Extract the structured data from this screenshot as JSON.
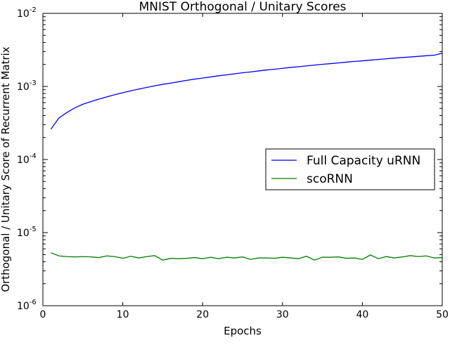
{
  "chart_data": {
    "type": "line",
    "title": "MNIST Orthogonal / Unitary Scores",
    "xlabel": "Epochs",
    "ylabel": "Orthogonal / Unitary Score of Recurrent Matrix",
    "xlim": [
      0,
      50
    ],
    "ylim": [
      1e-06,
      0.01
    ],
    "yscale": "log",
    "x_ticks": [
      {
        "value": 0,
        "label": "0"
      },
      {
        "value": 10,
        "label": "10"
      },
      {
        "value": 20,
        "label": "20"
      },
      {
        "value": 30,
        "label": "30"
      },
      {
        "value": 40,
        "label": "40"
      },
      {
        "value": 50,
        "label": "50"
      }
    ],
    "y_ticks": [
      {
        "value": 1e-06,
        "base": "10",
        "exp": "-6"
      },
      {
        "value": 1e-05,
        "base": "10",
        "exp": "-5"
      },
      {
        "value": 0.0001,
        "base": "10",
        "exp": "-4"
      },
      {
        "value": 0.001,
        "base": "10",
        "exp": "-3"
      },
      {
        "value": 0.01,
        "base": "10",
        "exp": "-2"
      }
    ],
    "grid": false,
    "legend_position": "center-right",
    "x": [
      1,
      2,
      3,
      4,
      5,
      6,
      7,
      8,
      9,
      10,
      11,
      12,
      13,
      14,
      15,
      16,
      17,
      18,
      19,
      20,
      21,
      22,
      23,
      24,
      25,
      26,
      27,
      28,
      29,
      30,
      31,
      32,
      33,
      34,
      35,
      36,
      37,
      38,
      39,
      40,
      41,
      42,
      43,
      44,
      45,
      46,
      47,
      48,
      49,
      50
    ],
    "series": [
      {
        "name": "Full Capacity uRNN",
        "color": "#0000ff",
        "values": [
          0.00026,
          0.00037,
          0.00044,
          0.00051,
          0.00057,
          0.00062,
          0.00067,
          0.00072,
          0.00077,
          0.00082,
          0.00087,
          0.00092,
          0.00097,
          0.00102,
          0.00107,
          0.00111,
          0.00116,
          0.00121,
          0.00126,
          0.0013,
          0.00135,
          0.0014,
          0.00144,
          0.00149,
          0.00154,
          0.00158,
          0.00163,
          0.00168,
          0.00172,
          0.00177,
          0.00182,
          0.00186,
          0.00191,
          0.00196,
          0.00201,
          0.00205,
          0.0021,
          0.00215,
          0.0022,
          0.00224,
          0.00229,
          0.00234,
          0.00239,
          0.00244,
          0.00249,
          0.00253,
          0.00258,
          0.00263,
          0.00268,
          0.00285
        ]
      },
      {
        "name": "scoRNN",
        "color": "#008000",
        "values": [
          5.3e-06,
          4.8e-06,
          4.7e-06,
          4.65e-06,
          4.7e-06,
          4.65e-06,
          4.55e-06,
          4.8e-06,
          4.7e-06,
          4.45e-06,
          4.75e-06,
          4.5e-06,
          4.7e-06,
          4.85e-06,
          4.2e-06,
          4.45e-06,
          4.4e-06,
          4.45e-06,
          4.55e-06,
          4.4e-06,
          4.6e-06,
          4.4e-06,
          4.6e-06,
          4.5e-06,
          4.65e-06,
          4.3e-06,
          4.5e-06,
          4.5e-06,
          4.45e-06,
          4.6e-06,
          4.5e-06,
          4.4e-06,
          4.75e-06,
          4.2e-06,
          4.6e-06,
          4.6e-06,
          4.65e-06,
          4.45e-06,
          4.5e-06,
          4.3e-06,
          4.95e-06,
          4.4e-06,
          4.7e-06,
          4.5e-06,
          4.65e-06,
          4.85e-06,
          4.7e-06,
          4.8e-06,
          4.5e-06,
          4.55e-06
        ]
      }
    ]
  }
}
